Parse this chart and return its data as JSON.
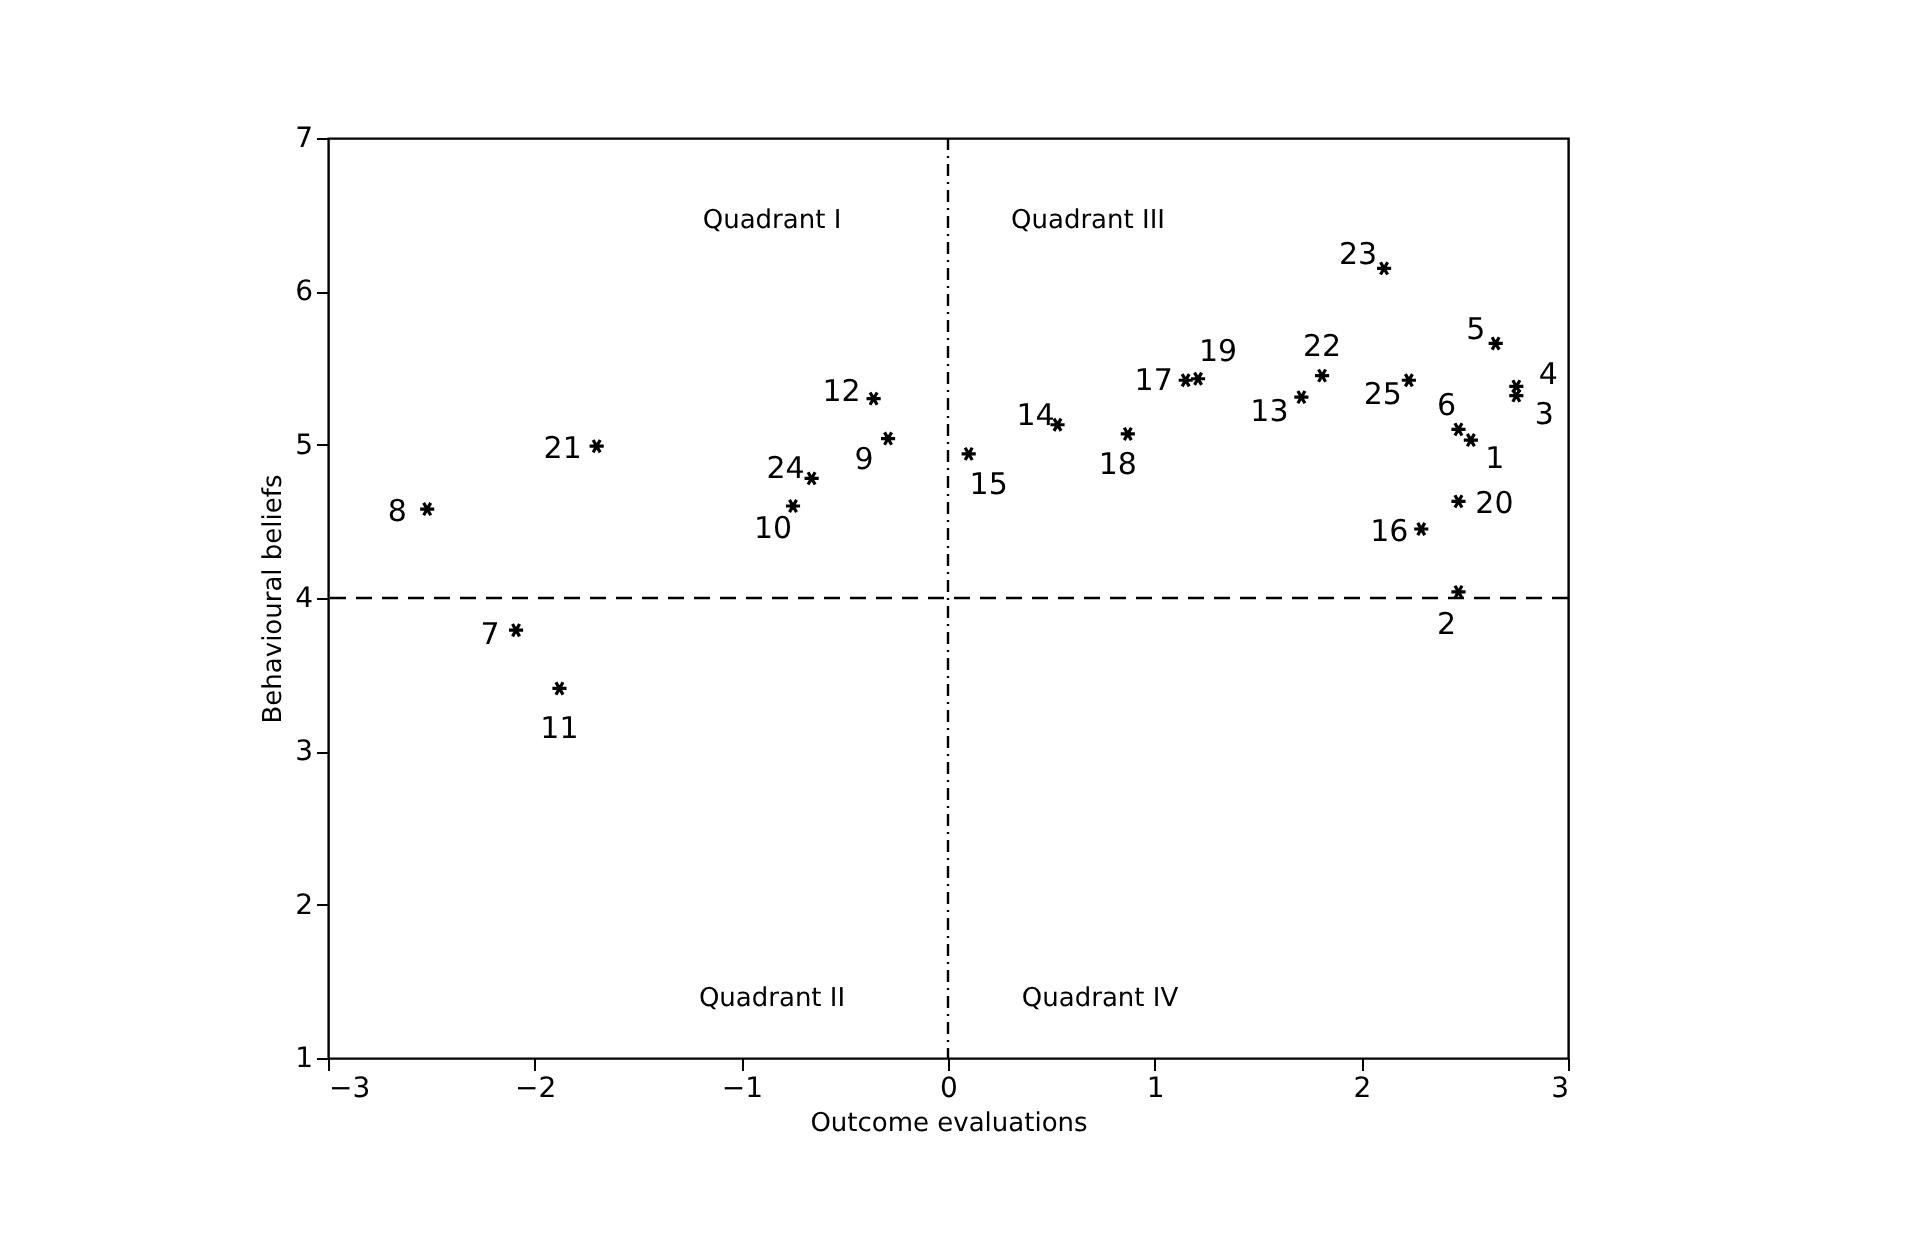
{
  "chart_data": {
    "type": "scatter",
    "xlabel": "Outcome evaluations",
    "ylabel": "Behavioural beliefs",
    "x": [
      2.53,
      2.47,
      2.75,
      2.75,
      2.65,
      2.47,
      -2.09,
      -2.52,
      -0.29,
      -0.75,
      -1.88,
      -0.36,
      1.71,
      0.53,
      0.1,
      2.29,
      1.15,
      0.87,
      1.21,
      2.47,
      -1.7,
      1.81,
      2.11,
      -0.66,
      2.23
    ],
    "series": [
      {
        "color": "#000000",
        "values": [
          5.03,
          4.04,
          5.32,
          5.38,
          5.66,
          5.1,
          3.79,
          4.58,
          5.04,
          4.6,
          3.41,
          5.3,
          5.31,
          5.13,
          4.94,
          4.45,
          5.42,
          5.07,
          5.43,
          4.63,
          4.99,
          5.45,
          6.15,
          4.78,
          5.42
        ]
      }
    ],
    "annotations": [
      {
        "text": "1",
        "x": 2.53,
        "y": 5.03
      },
      {
        "text": "2",
        "x": 2.47,
        "y": 4.04
      },
      {
        "text": "3",
        "x": 2.75,
        "y": 5.32
      },
      {
        "text": "4",
        "x": 2.75,
        "y": 5.38
      },
      {
        "text": "5",
        "x": 2.65,
        "y": 5.66
      },
      {
        "text": "6",
        "x": 2.47,
        "y": 5.1
      },
      {
        "text": "7",
        "x": -2.09,
        "y": 3.79
      },
      {
        "text": "8",
        "x": -2.52,
        "y": 4.58
      },
      {
        "text": "9",
        "x": -0.29,
        "y": 5.04
      },
      {
        "text": "10",
        "x": -0.75,
        "y": 4.6
      },
      {
        "text": "11",
        "x": -1.88,
        "y": 3.41
      },
      {
        "text": "12",
        "x": -0.36,
        "y": 5.3
      },
      {
        "text": "13",
        "x": 1.71,
        "y": 5.31
      },
      {
        "text": "14",
        "x": 0.53,
        "y": 5.13
      },
      {
        "text": "15",
        "x": 0.1,
        "y": 4.94
      },
      {
        "text": "16",
        "x": 2.29,
        "y": 4.45
      },
      {
        "text": "17",
        "x": 1.15,
        "y": 5.42
      },
      {
        "text": "18",
        "x": 0.87,
        "y": 5.07
      },
      {
        "text": "19",
        "x": 1.21,
        "y": 5.43
      },
      {
        "text": "20",
        "x": 2.47,
        "y": 4.63
      },
      {
        "text": "21",
        "x": -1.7,
        "y": 4.99
      },
      {
        "text": "22",
        "x": 1.81,
        "y": 5.45
      },
      {
        "text": "23",
        "x": 2.11,
        "y": 6.15
      },
      {
        "text": "24",
        "x": -0.66,
        "y": 4.78
      },
      {
        "text": "25",
        "x": 2.23,
        "y": 5.42
      },
      "Quadrant I",
      "Quadrant III",
      "Quadrant II",
      "Quadrant IV"
    ],
    "xlim": [
      -3,
      3
    ],
    "ylim": [
      1,
      7
    ],
    "xticks": [
      -3,
      -2,
      -1,
      0,
      1,
      2,
      3
    ],
    "yticks": [
      1,
      2,
      3,
      4,
      5,
      6,
      7
    ],
    "ref_lines": [
      {
        "axis": "y",
        "value": 4,
        "line_style": "dashed"
      },
      {
        "axis": "x",
        "value": 0,
        "line_style": "dashdot"
      }
    ],
    "grid": false,
    "marker": "cross"
  }
}
